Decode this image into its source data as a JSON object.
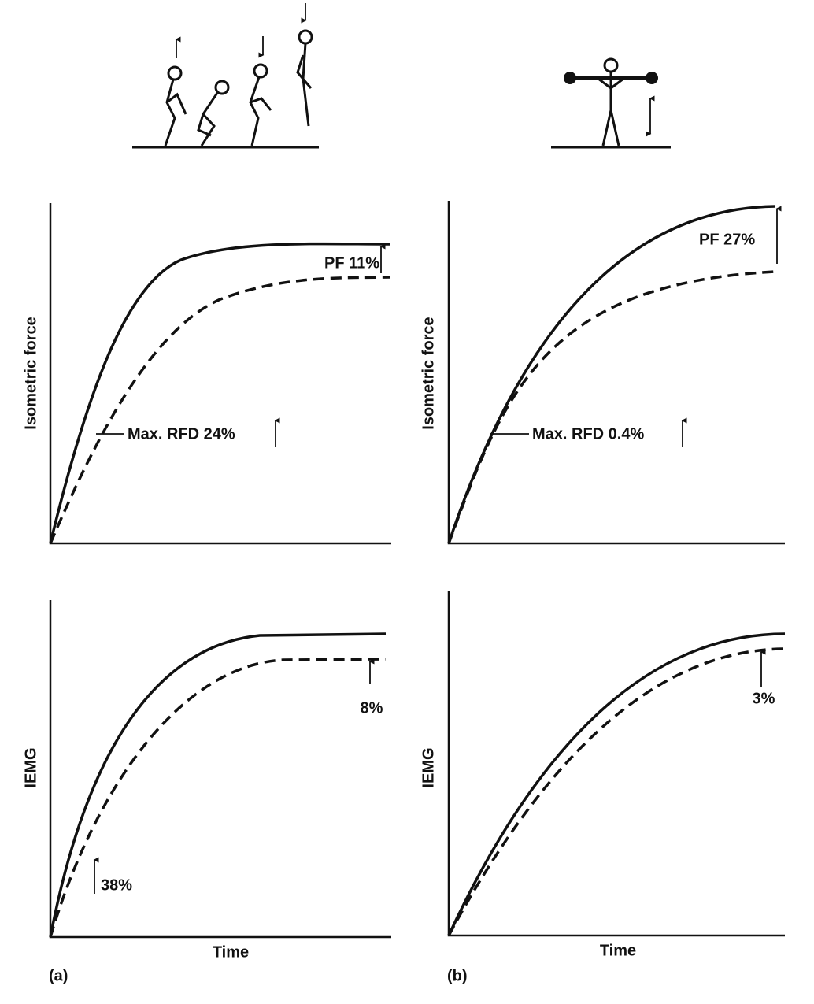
{
  "panels": [
    {
      "label": "(a)",
      "force": {
        "y_label": "Isometric force",
        "peak_force": "PF 11%",
        "max_rfd": "Max. RFD 24%"
      },
      "iemg": {
        "y_label": "IEMG",
        "late": "8%",
        "early": "38%"
      },
      "x_label": "Time"
    },
    {
      "label": "(b)",
      "force": {
        "y_label": "Isometric force",
        "peak_force": "PF 27%",
        "max_rfd": "Max. RFD 0.4%"
      },
      "iemg": {
        "y_label": "IEMG",
        "late": "3%"
      },
      "x_label": "Time"
    }
  ]
}
